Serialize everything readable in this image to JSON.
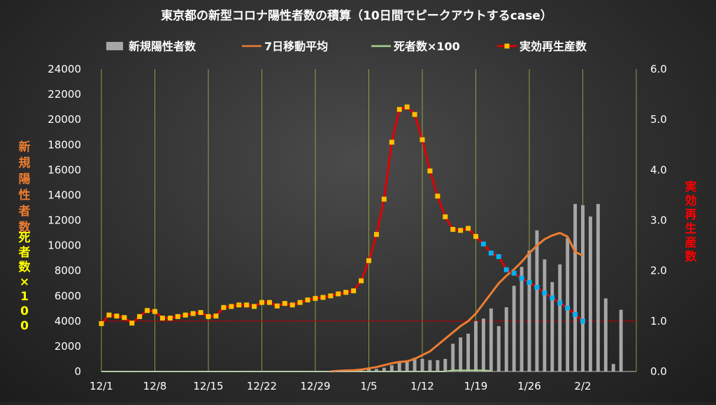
{
  "title": "東京都の新型コロナ陽性者数の積算（10日間でピークアウトするcase）",
  "legend": [
    {
      "label": "新規陽性者数",
      "color": "#a6a6a6",
      "marker": "bar"
    },
    {
      "label": "7日移動平均",
      "color": "#ed7d31",
      "marker": "line"
    },
    {
      "label": "死者数×100",
      "color": "#a9d18e",
      "marker": "line"
    },
    {
      "label": "実効再生産数",
      "color": "#e00000",
      "marker": "line-square"
    }
  ],
  "y_left_label_1": "新規陽性者数",
  "y_left_label_2": "死者数×100",
  "y_right_label": "実効再生産数",
  "colors": {
    "bars": "#a6a6a6",
    "ma": "#ed7d31",
    "deaths": "#a9d18e",
    "rt_line": "#e00000",
    "rt_marker": "#ffc000",
    "rt_marker_projected": "#00b0f0",
    "grid": "#a6b84a",
    "ref_line": "#c00000",
    "left_label_color_1": "#ed7d31",
    "left_label_color_2": "#ffff00",
    "right_label_color": "#ff0000"
  },
  "chart_data": {
    "type": "bar+line",
    "x_ticks": [
      "12/1",
      "12/8",
      "12/15",
      "12/22",
      "12/29",
      "1/5",
      "1/12",
      "1/19",
      "1/26",
      "2/2"
    ],
    "x_start": "12/1",
    "x_end_day": 70,
    "y_left_ticks": [
      "0",
      "2000",
      "4000",
      "6000",
      "8000",
      "10000",
      "12000",
      "14000",
      "16000",
      "18000",
      "20000",
      "22000",
      "24000"
    ],
    "y_left_range": [
      0,
      24000
    ],
    "y_right_ticks": [
      "0.0",
      "1.0",
      "2.0",
      "3.0",
      "4.0",
      "5.0",
      "6.0"
    ],
    "y_right_range": [
      0,
      6
    ],
    "bars": {
      "name": "新規陽性者数",
      "start_day": 27,
      "values": [
        0,
        0,
        0,
        0,
        0,
        0,
        50,
        100,
        200,
        200,
        300,
        500,
        700,
        900,
        1100,
        1000,
        900,
        900,
        1000,
        2200,
        2700,
        3000,
        4000,
        4200,
        5000,
        3600,
        5100,
        6800,
        8300,
        9600,
        11200,
        8900,
        7100,
        8500,
        10600,
        13300,
        13200,
        12300,
        13300,
        5800,
        600,
        4900
      ]
    },
    "moving_average": {
      "name": "7日移動平均",
      "start_day": 30,
      "values": [
        0,
        50,
        80,
        100,
        150,
        250,
        350,
        500,
        650,
        760,
        800,
        1000,
        1300,
        1600,
        2100,
        2600,
        3100,
        3600,
        4000,
        4600,
        5400,
        6200,
        7000,
        7600,
        8100,
        8700,
        9400,
        10000,
        10500,
        10800,
        11000,
        10700,
        9500,
        9200
      ]
    },
    "deaths_x100": {
      "name": "死者数×100",
      "start_day": 0,
      "values": [
        0,
        0,
        0,
        0,
        0,
        0,
        0,
        0,
        0,
        0,
        0,
        0,
        0,
        0,
        0,
        0,
        0,
        0,
        0,
        0,
        0,
        0,
        0,
        0,
        0,
        0,
        0,
        0,
        0,
        0,
        0,
        0,
        0,
        0,
        0,
        0,
        0,
        0,
        0,
        0,
        0,
        0,
        0,
        0,
        0,
        0,
        100,
        100,
        100,
        100,
        100,
        50
      ]
    },
    "rt": {
      "name": "実効再生産数",
      "start_day": 0,
      "projected_from_day": 50,
      "values": [
        0.95,
        1.12,
        1.1,
        1.07,
        0.96,
        1.09,
        1.21,
        1.19,
        1.06,
        1.06,
        1.09,
        1.12,
        1.15,
        1.17,
        1.09,
        1.1,
        1.27,
        1.29,
        1.32,
        1.32,
        1.29,
        1.37,
        1.37,
        1.3,
        1.35,
        1.32,
        1.37,
        1.42,
        1.45,
        1.47,
        1.5,
        1.54,
        1.57,
        1.6,
        1.8,
        2.2,
        2.72,
        3.42,
        4.55,
        5.2,
        5.25,
        5.1,
        4.6,
        3.98,
        3.48,
        3.07,
        2.82,
        2.8,
        2.84,
        2.68,
        2.53,
        2.35,
        2.28,
        2.02,
        1.95,
        1.85,
        1.77,
        1.67,
        1.56,
        1.46,
        1.36,
        1.26,
        1.13,
        1.0
      ]
    },
    "reference_line_y_right": 1.0
  }
}
